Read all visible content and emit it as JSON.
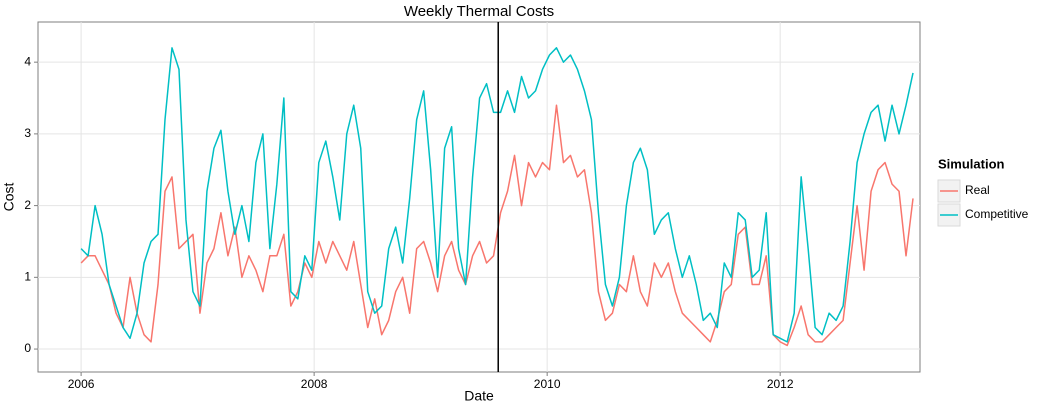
{
  "chart_data": {
    "type": "line",
    "title": "Weekly Thermal Costs",
    "x_label": "Date",
    "y_label": "Cost",
    "legend_title": "Simulation",
    "legend_position": "right",
    "grid": true,
    "xlim": [
      2005.63,
      2013.2
    ],
    "xticks": [
      2006,
      2008,
      2010,
      2012
    ],
    "ylim": [
      -0.32,
      4.56
    ],
    "yticks": [
      0,
      1,
      2,
      3,
      4
    ],
    "vline": 2009.58,
    "vline_color": "#000000",
    "x": [
      2006.0,
      2006.06,
      2006.12,
      2006.18,
      2006.24,
      2006.3,
      2006.36,
      2006.42,
      2006.48,
      2006.54,
      2006.6,
      2006.66,
      2006.72,
      2006.78,
      2006.84,
      2006.9,
      2006.96,
      2007.02,
      2007.08,
      2007.14,
      2007.2,
      2007.26,
      2007.32,
      2007.38,
      2007.44,
      2007.5,
      2007.56,
      2007.62,
      2007.68,
      2007.74,
      2007.8,
      2007.86,
      2007.92,
      2007.98,
      2008.04,
      2008.1,
      2008.16,
      2008.22,
      2008.28,
      2008.34,
      2008.4,
      2008.46,
      2008.52,
      2008.58,
      2008.64,
      2008.7,
      2008.76,
      2008.82,
      2008.88,
      2008.94,
      2009.0,
      2009.06,
      2009.12,
      2009.18,
      2009.24,
      2009.3,
      2009.36,
      2009.42,
      2009.48,
      2009.54,
      2009.6,
      2009.66,
      2009.72,
      2009.78,
      2009.84,
      2009.9,
      2009.96,
      2010.02,
      2010.08,
      2010.14,
      2010.2,
      2010.26,
      2010.32,
      2010.38,
      2010.44,
      2010.5,
      2010.56,
      2010.62,
      2010.68,
      2010.74,
      2010.8,
      2010.86,
      2010.92,
      2010.98,
      2011.04,
      2011.1,
      2011.16,
      2011.22,
      2011.28,
      2011.34,
      2011.4,
      2011.46,
      2011.52,
      2011.58,
      2011.64,
      2011.7,
      2011.76,
      2011.82,
      2011.88,
      2011.94,
      2012.0,
      2012.06,
      2012.12,
      2012.18,
      2012.24,
      2012.3,
      2012.36,
      2012.42,
      2012.48,
      2012.54,
      2012.6,
      2012.66,
      2012.72,
      2012.78,
      2012.84,
      2012.9,
      2012.96,
      2013.02,
      2013.08,
      2013.14
    ],
    "series": [
      {
        "name": "Real",
        "color": "#F8766D",
        "values": [
          1.2,
          1.3,
          1.3,
          1.1,
          0.9,
          0.5,
          0.3,
          1.0,
          0.5,
          0.2,
          0.1,
          0.9,
          2.2,
          2.4,
          1.4,
          1.5,
          1.6,
          0.5,
          1.2,
          1.4,
          1.9,
          1.3,
          1.7,
          1.0,
          1.3,
          1.1,
          0.8,
          1.3,
          1.3,
          1.6,
          0.6,
          0.8,
          1.2,
          1.0,
          1.5,
          1.2,
          1.5,
          1.3,
          1.1,
          1.5,
          0.9,
          0.3,
          0.7,
          0.2,
          0.4,
          0.8,
          1.0,
          0.5,
          1.4,
          1.5,
          1.2,
          0.8,
          1.3,
          1.5,
          1.1,
          0.9,
          1.3,
          1.5,
          1.2,
          1.3,
          1.9,
          2.2,
          2.7,
          2.0,
          2.6,
          2.4,
          2.6,
          2.5,
          3.4,
          2.6,
          2.7,
          2.4,
          2.5,
          1.9,
          0.8,
          0.4,
          0.5,
          0.9,
          0.8,
          1.3,
          0.8,
          0.6,
          1.2,
          1.0,
          1.2,
          0.8,
          0.5,
          0.4,
          0.3,
          0.2,
          0.1,
          0.4,
          0.8,
          0.9,
          1.6,
          1.7,
          0.9,
          0.9,
          1.3,
          0.2,
          0.1,
          0.05,
          0.3,
          0.6,
          0.2,
          0.1,
          0.1,
          0.2,
          0.3,
          0.4,
          1.2,
          2.0,
          1.1,
          2.2,
          2.5,
          2.6,
          2.3,
          2.2,
          1.3,
          2.1
        ]
      },
      {
        "name": "Competitive",
        "color": "#00BFC4",
        "values": [
          1.4,
          1.3,
          2.0,
          1.6,
          0.9,
          0.6,
          0.3,
          0.15,
          0.5,
          1.2,
          1.5,
          1.6,
          3.2,
          4.2,
          3.9,
          1.8,
          0.8,
          0.6,
          2.2,
          2.8,
          3.05,
          2.2,
          1.6,
          2.0,
          1.5,
          2.6,
          3.0,
          1.4,
          2.3,
          3.5,
          0.8,
          0.7,
          1.3,
          1.1,
          2.6,
          2.9,
          2.4,
          1.8,
          3.0,
          3.4,
          2.8,
          0.8,
          0.5,
          0.6,
          1.4,
          1.7,
          1.2,
          2.1,
          3.2,
          3.6,
          2.5,
          1.0,
          2.8,
          3.1,
          1.4,
          0.9,
          2.4,
          3.5,
          3.7,
          3.3,
          3.3,
          3.6,
          3.3,
          3.8,
          3.5,
          3.6,
          3.9,
          4.1,
          4.2,
          4.0,
          4.1,
          3.9,
          3.6,
          3.2,
          1.9,
          0.9,
          0.6,
          1.0,
          2.0,
          2.6,
          2.8,
          2.5,
          1.6,
          1.8,
          1.9,
          1.4,
          1.0,
          1.3,
          0.9,
          0.4,
          0.5,
          0.3,
          1.2,
          1.0,
          1.9,
          1.8,
          1.0,
          1.1,
          1.9,
          0.2,
          0.15,
          0.1,
          0.5,
          2.4,
          1.4,
          0.3,
          0.2,
          0.5,
          0.4,
          0.6,
          1.5,
          2.6,
          3.0,
          3.3,
          3.4,
          2.9,
          3.4,
          3.0,
          3.4,
          3.85
        ]
      }
    ]
  }
}
